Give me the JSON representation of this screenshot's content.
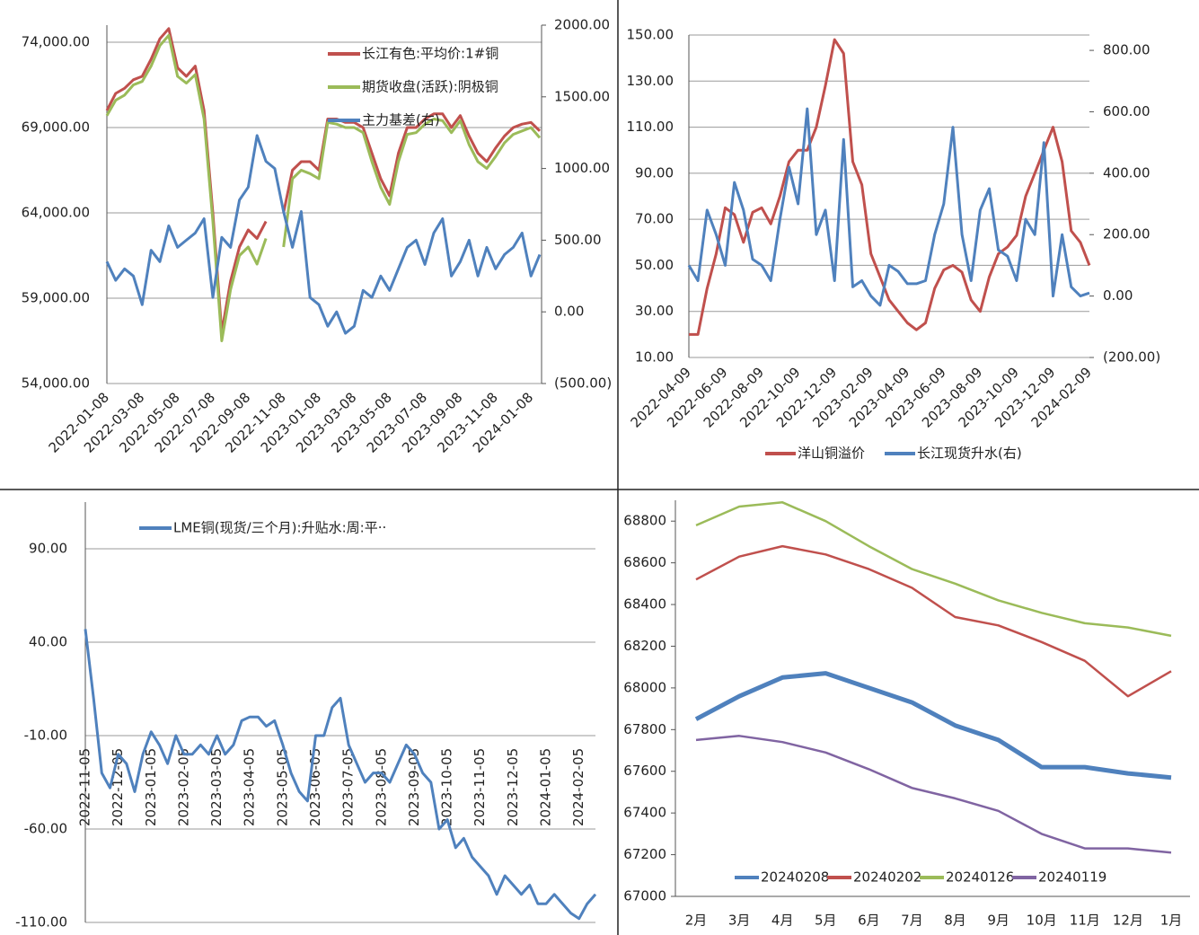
{
  "chart_data": [
    {
      "type": "line",
      "categories": [
        "2022-01-08",
        null,
        null,
        null,
        "2022-03-08",
        null,
        null,
        null,
        "2022-05-08",
        null,
        null,
        null,
        "2022-07-08",
        null,
        null,
        null,
        "2022-09-08",
        null,
        null,
        null,
        "2022-11-08",
        null,
        null,
        null,
        "2023-01-08",
        null,
        null,
        null,
        "2023-03-08",
        null,
        null,
        null,
        "2023-05-08",
        null,
        null,
        null,
        "2023-07-08",
        null,
        null,
        null,
        "2023-09-08",
        null,
        null,
        null,
        "2023-11-08",
        null,
        null,
        null,
        "2024-01-08",
        null
      ],
      "series": [
        {
          "name": "长江有色:平均价:1#铜",
          "color": "#c0504d",
          "values": [
            70000,
            71000,
            71300,
            71800,
            72000,
            73000,
            74200,
            74800,
            72500,
            72000,
            72600,
            70000,
            64000,
            57000,
            60000,
            62000,
            63000,
            62500,
            63500,
            null,
            64000,
            66500,
            67000,
            67000,
            66500,
            69500,
            69500,
            69300,
            69300,
            69000,
            67500,
            66000,
            65000,
            67500,
            69000,
            69000,
            69500,
            69800,
            69800,
            69000,
            69700,
            68500,
            67500,
            67000,
            67800,
            68500,
            69000,
            69200,
            69300,
            68800
          ]
        },
        {
          "name": "期货收盘(活跃):阴极铜",
          "color": "#9bbb59",
          "values": [
            69700,
            70600,
            70900,
            71500,
            71700,
            72600,
            73800,
            74400,
            72000,
            71600,
            72100,
            69500,
            63500,
            56500,
            59500,
            61500,
            62000,
            61000,
            62500,
            null,
            62000,
            66000,
            66500,
            66300,
            66000,
            69300,
            69200,
            69000,
            69000,
            68700,
            67000,
            65500,
            64500,
            67000,
            68600,
            68700,
            69200,
            69500,
            69400,
            68700,
            69400,
            68000,
            67000,
            66600,
            67300,
            68100,
            68600,
            68800,
            69000,
            68400
          ]
        },
        {
          "name": "主力基差(右)",
          "color": "#4f81bd",
          "axis": "y2",
          "values": [
            350,
            220,
            300,
            250,
            50,
            430,
            350,
            600,
            450,
            500,
            550,
            650,
            100,
            520,
            450,
            780,
            870,
            1230,
            1050,
            1000,
            700,
            450,
            700,
            100,
            50,
            -100,
            0,
            -150,
            -100,
            150,
            100,
            250,
            150,
            300,
            450,
            500,
            330,
            550,
            650,
            250,
            350,
            500,
            250,
            450,
            300,
            400,
            450,
            550,
            250,
            400
          ]
        }
      ],
      "ylim": [
        54000,
        75000
      ],
      "yticks": [
        {
          "value": 54000,
          "label": "54,000.00"
        },
        {
          "value": 59000,
          "label": "59,000.00"
        },
        {
          "value": 64000,
          "label": "64,000.00"
        },
        {
          "value": 69000,
          "label": "69,000.00"
        },
        {
          "value": 74000,
          "label": "74,000.00"
        }
      ],
      "y2lim": [
        -500,
        2000
      ],
      "y2ticks": [
        {
          "value": -500,
          "label": "(500.00)"
        },
        {
          "value": 0,
          "label": "0.00"
        },
        {
          "value": 500,
          "label": "500.00"
        },
        {
          "value": 1000,
          "label": "1000.00"
        },
        {
          "value": 1500,
          "label": "1500.00"
        },
        {
          "value": 2000,
          "label": "2000.00"
        }
      ],
      "grid": true
    },
    {
      "type": "line",
      "categories": [
        "2022-04-09",
        null,
        null,
        null,
        "2022-06-09",
        null,
        null,
        null,
        "2022-08-09",
        null,
        null,
        null,
        "2022-10-09",
        null,
        null,
        null,
        "2022-12-09",
        null,
        null,
        null,
        "2023-02-09",
        null,
        null,
        null,
        "2023-04-09",
        null,
        null,
        null,
        "2023-06-09",
        null,
        null,
        null,
        "2023-08-09",
        null,
        null,
        null,
        "2023-10-09",
        null,
        null,
        null,
        "2023-12-09",
        null,
        null,
        null,
        "2024-02-09"
      ],
      "series": [
        {
          "name": "洋山铜溢价",
          "color": "#c0504d",
          "values": [
            20,
            20,
            40,
            55,
            75,
            72,
            60,
            73,
            75,
            68,
            80,
            95,
            100,
            100,
            110,
            128,
            148,
            142,
            95,
            85,
            55,
            45,
            35,
            30,
            25,
            22,
            25,
            40,
            48,
            50,
            47,
            35,
            30,
            45,
            55,
            58,
            63,
            80,
            90,
            100,
            110,
            95,
            65,
            60,
            50
          ]
        },
        {
          "name": "长江现货升水(右)",
          "color": "#4f81bd",
          "axis": "y2",
          "values": [
            100,
            50,
            280,
            200,
            100,
            370,
            280,
            120,
            100,
            50,
            250,
            420,
            300,
            610,
            200,
            280,
            50,
            510,
            30,
            50,
            0,
            -30,
            100,
            80,
            40,
            40,
            50,
            200,
            300,
            550,
            200,
            50,
            280,
            350,
            150,
            130,
            50,
            250,
            200,
            500,
            0,
            200,
            30,
            0,
            10
          ]
        }
      ],
      "ylim": [
        10,
        150
      ],
      "yticks": [
        {
          "value": 10,
          "label": "10.00"
        },
        {
          "value": 30,
          "label": "30.00"
        },
        {
          "value": 50,
          "label": "50.00"
        },
        {
          "value": 70,
          "label": "70.00"
        },
        {
          "value": 90,
          "label": "90.00"
        },
        {
          "value": 110,
          "label": "110.00"
        },
        {
          "value": 130,
          "label": "130.00"
        },
        {
          "value": 150,
          "label": "150.00"
        }
      ],
      "y2lim": [
        -200,
        850
      ],
      "y2ticks": [
        {
          "value": -200,
          "label": "(200.00)"
        },
        {
          "value": 0,
          "label": "0.00"
        },
        {
          "value": 200,
          "label": "200.00"
        },
        {
          "value": 400,
          "label": "400.00"
        },
        {
          "value": 600,
          "label": "600.00"
        },
        {
          "value": 800,
          "label": "800.00"
        }
      ],
      "grid": true
    },
    {
      "type": "line",
      "categories": [
        "2022-11-05",
        null,
        null,
        null,
        "2022-12-05",
        null,
        null,
        null,
        "2023-01-05",
        null,
        null,
        null,
        "2023-02-05",
        null,
        null,
        null,
        "2023-03-05",
        null,
        null,
        null,
        "2023-04-05",
        null,
        null,
        null,
        "2023-05-05",
        null,
        null,
        null,
        "2023-06-05",
        null,
        null,
        null,
        "2023-07-05",
        null,
        null,
        null,
        "2023-08-05",
        null,
        null,
        null,
        "2023-09-05",
        null,
        null,
        null,
        "2023-10-05",
        null,
        null,
        null,
        "2023-11-05",
        null,
        null,
        null,
        "2023-12-05",
        null,
        null,
        null,
        "2024-01-05",
        null,
        null,
        null,
        "2024-02-05",
        null,
        null
      ],
      "series": [
        {
          "name": "LME铜(现货/三个月):升贴水:周:平··",
          "color": "#4f81bd",
          "values": [
            47,
            10,
            -30,
            -38,
            -20,
            -25,
            -40,
            -20,
            -8,
            -15,
            -25,
            -10,
            -20,
            -20,
            -15,
            -20,
            -10,
            -20,
            -15,
            -2,
            0,
            0,
            -5,
            -2,
            -15,
            -30,
            -40,
            -45,
            -10,
            -10,
            5,
            10,
            -15,
            -25,
            -35,
            -30,
            -30,
            -35,
            -25,
            -15,
            -20,
            -30,
            -35,
            -60,
            -55,
            -70,
            -65,
            -75,
            -80,
            -85,
            -95,
            -85,
            -90,
            -95,
            -90,
            -100,
            -100,
            -95,
            -100,
            -105,
            -108,
            -100,
            -95
          ]
        }
      ],
      "ylim": [
        -110,
        115
      ],
      "yticks": [
        {
          "value": -110,
          "label": "-110.00"
        },
        {
          "value": -60,
          "label": "-60.00"
        },
        {
          "value": -10,
          "label": "-10.00"
        },
        {
          "value": 40,
          "label": "40.00"
        },
        {
          "value": 90,
          "label": "90.00"
        }
      ],
      "grid": true
    },
    {
      "type": "line",
      "categories": [
        "2月",
        "3月",
        "4月",
        "5月",
        "6月",
        "7月",
        "8月",
        "9月",
        "10月",
        "11月",
        "12月",
        "1月"
      ],
      "series": [
        {
          "name": "20240208",
          "color": "#4f81bd",
          "values": [
            67850,
            67960,
            68050,
            68070,
            68000,
            67930,
            67820,
            67750,
            67620,
            67620,
            67590,
            67570
          ]
        },
        {
          "name": "20240202",
          "color": "#c0504d",
          "values": [
            68520,
            68630,
            68680,
            68640,
            68570,
            68480,
            68340,
            68300,
            68220,
            68130,
            67960,
            68080
          ]
        },
        {
          "name": "20240126",
          "color": "#9bbb59",
          "values": [
            68780,
            68870,
            68890,
            68800,
            68680,
            68570,
            68500,
            68420,
            68360,
            68310,
            68290,
            68250
          ]
        },
        {
          "name": "20240119",
          "color": "#8064a2",
          "values": [
            67750,
            67770,
            67740,
            67690,
            67610,
            67520,
            67470,
            67410,
            67300,
            67230,
            67230,
            67210
          ]
        }
      ],
      "ylim": [
        67000,
        68900
      ],
      "yticks": [
        67000,
        67200,
        67400,
        67600,
        67800,
        68000,
        68200,
        68400,
        68600,
        68800
      ],
      "grid": false
    }
  ]
}
